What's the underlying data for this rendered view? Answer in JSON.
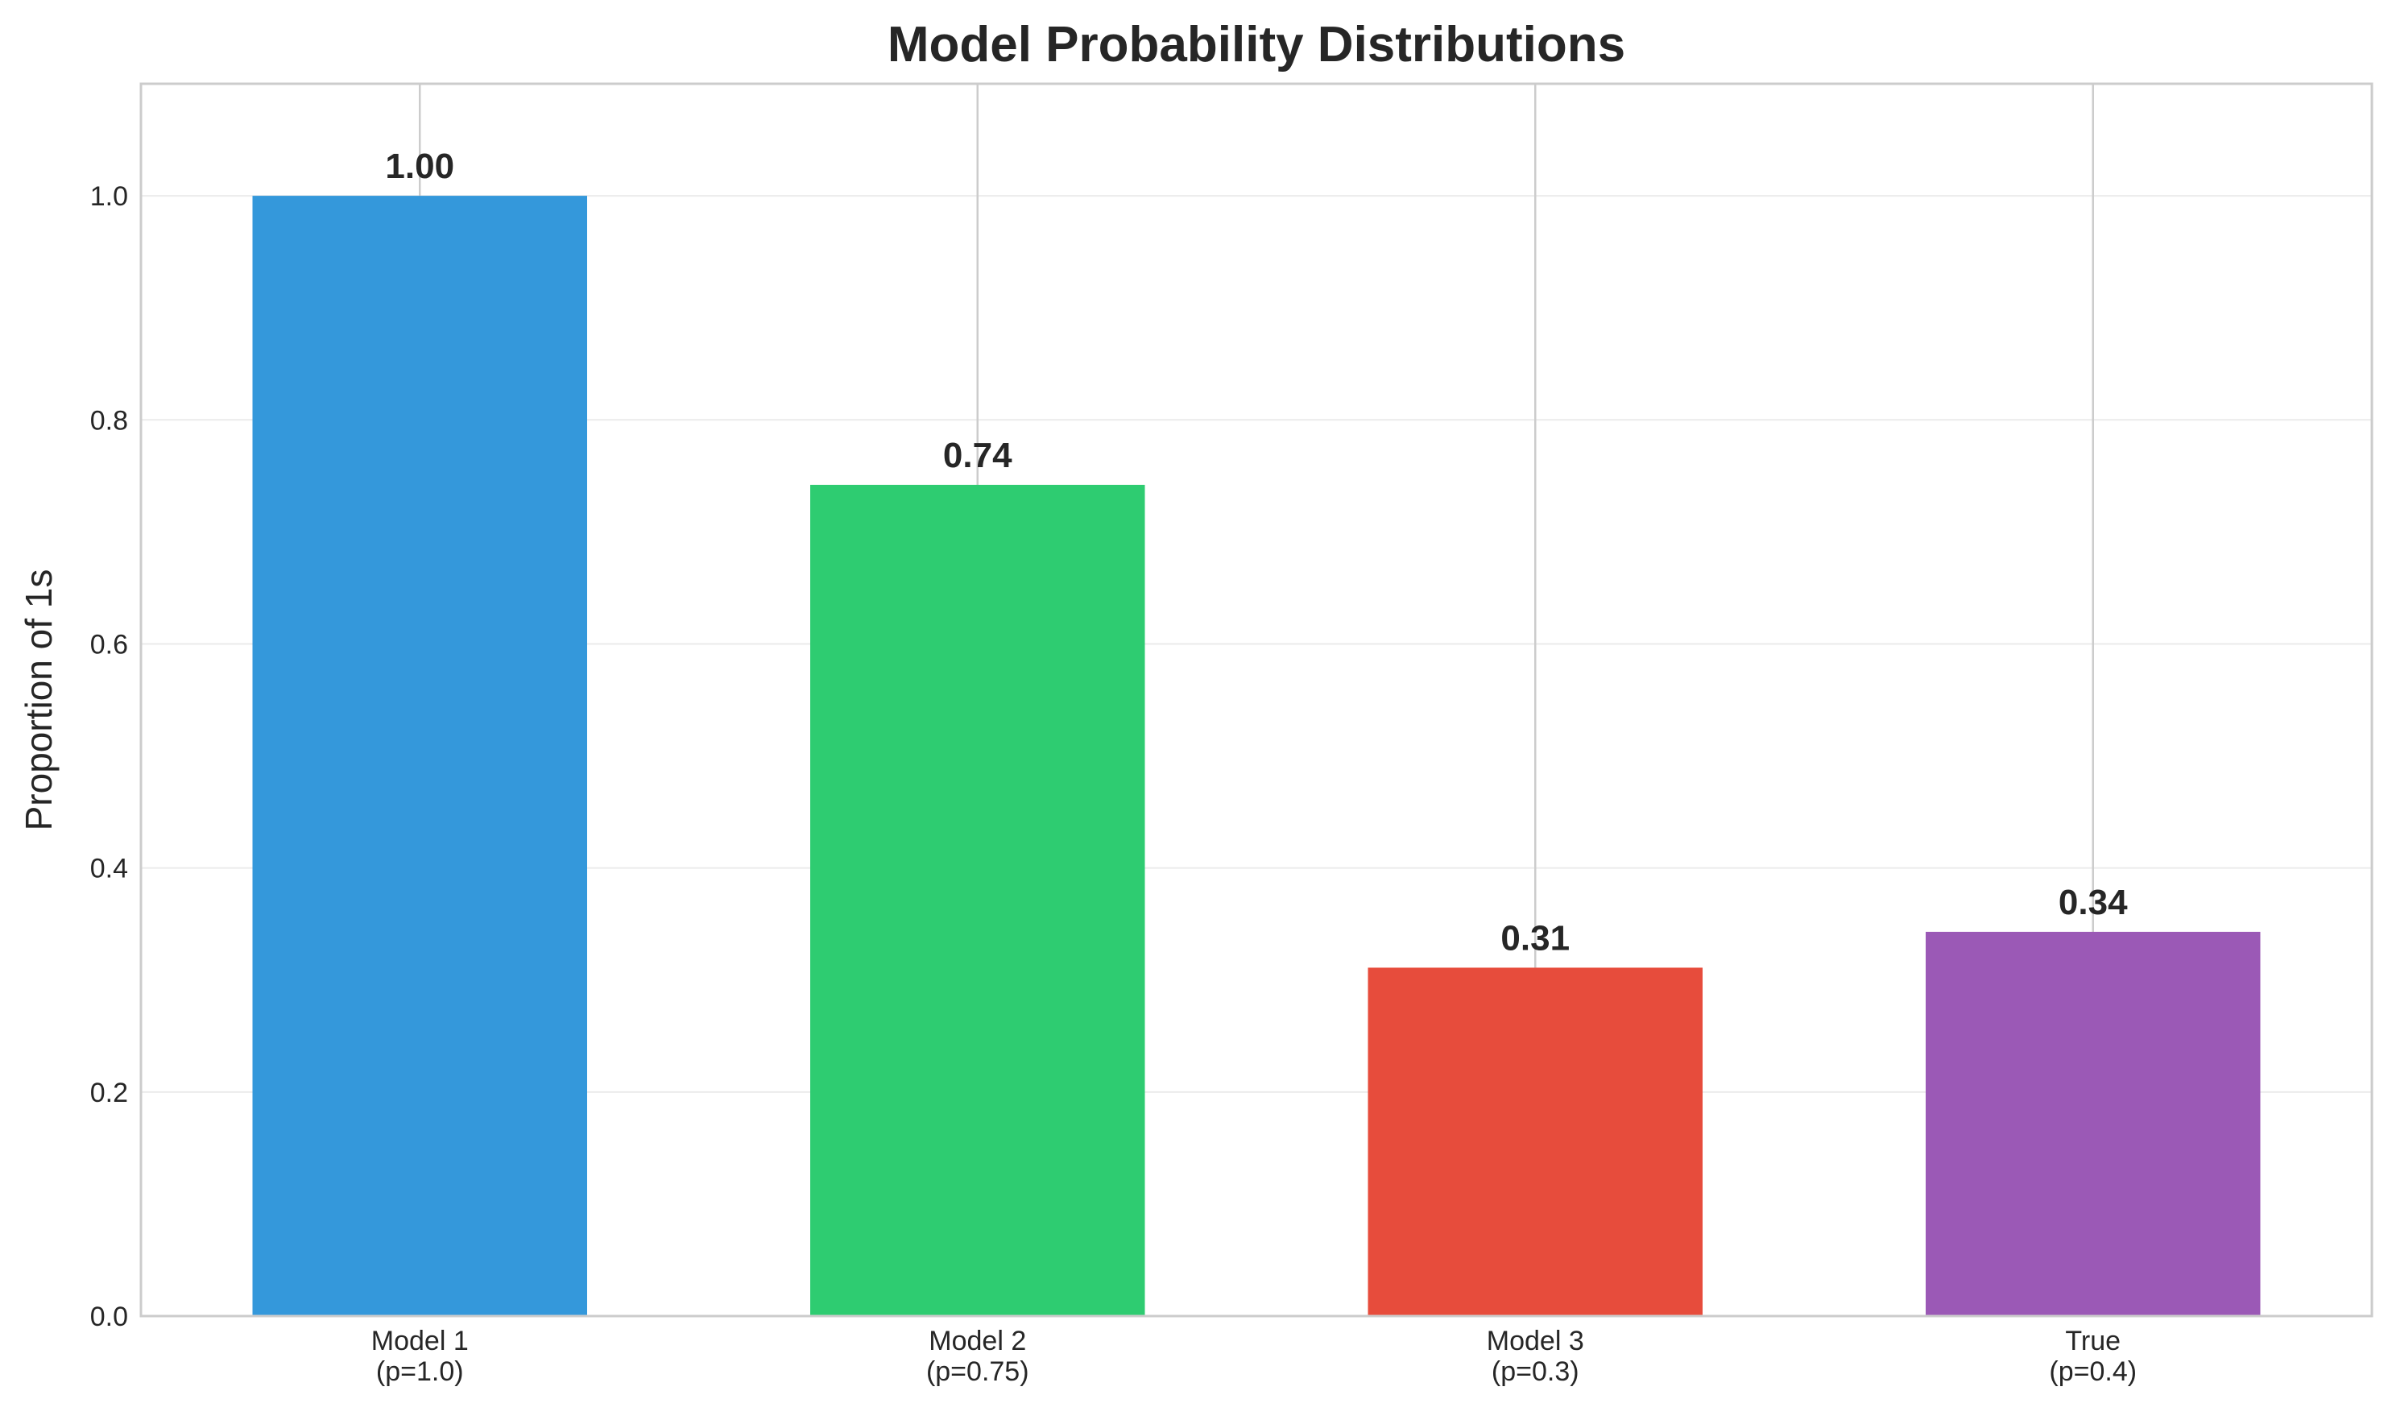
{
  "chart_data": {
    "type": "bar",
    "title": "Model Probability Distributions",
    "xlabel": "",
    "ylabel": "Proportion of 1s",
    "categories": [
      [
        "Model 1",
        "(p=1.0)"
      ],
      [
        "Model 2",
        "(p=0.75)"
      ],
      [
        "Model 3",
        "(p=0.3)"
      ],
      [
        "True",
        "(p=0.4)"
      ]
    ],
    "values": [
      1.0,
      0.742,
      0.311,
      0.343
    ],
    "value_labels": [
      "1.00",
      "0.74",
      "0.31",
      "0.34"
    ],
    "colors": [
      "#3498db",
      "#2ecc71",
      "#e74c3c",
      "#9b59b6"
    ],
    "ylim": [
      0,
      1.1
    ],
    "yticks": [
      0.0,
      0.2,
      0.4,
      0.6,
      0.8,
      1.0
    ],
    "ytick_labels": [
      "0.0",
      "0.2",
      "0.4",
      "0.6",
      "0.8",
      "1.0"
    ],
    "grid": true,
    "legend": "none"
  }
}
